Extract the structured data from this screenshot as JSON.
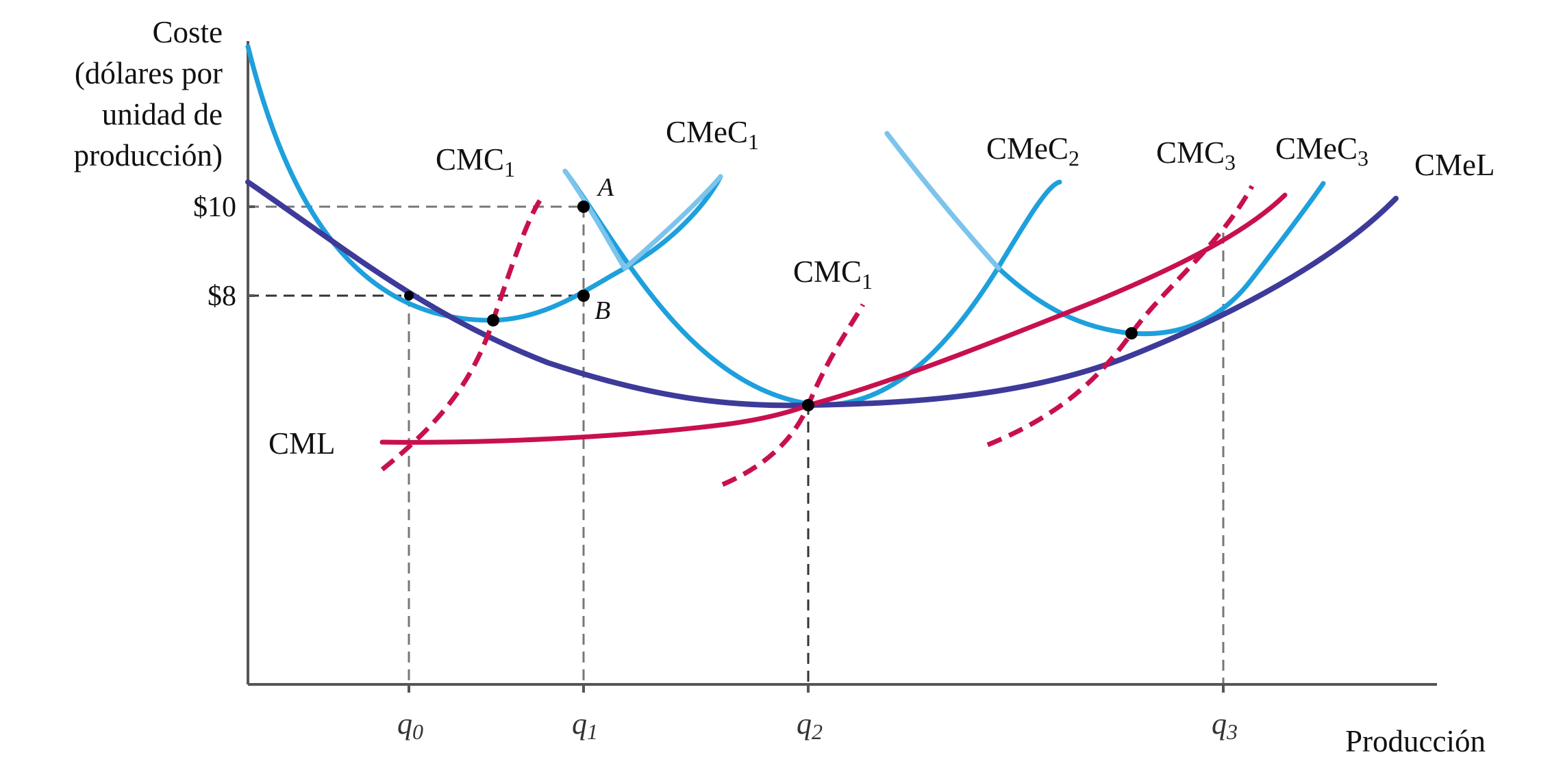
{
  "axes": {
    "y_title_lines": [
      "Coste",
      "(dólares por",
      "unidad de",
      "producción)"
    ],
    "x_title": "Producción",
    "y_ticks": [
      "$10",
      "$8"
    ],
    "x_ticks": [
      {
        "base": "q",
        "sub": "0"
      },
      {
        "base": "q",
        "sub": "1"
      },
      {
        "base": "q",
        "sub": "2"
      },
      {
        "base": "q",
        "sub": "3"
      }
    ]
  },
  "curve_labels": {
    "cmc1_left": {
      "base": "CMC",
      "sub": "1"
    },
    "cmec1": {
      "base": "CMeC",
      "sub": "1"
    },
    "cmec2": {
      "base": "CMeC",
      "sub": "2"
    },
    "cmc3": {
      "base": "CMC",
      "sub": "3"
    },
    "cmec3": {
      "base": "CMeC",
      "sub": "3"
    },
    "cmel": "CMeL",
    "cmc1_mid": {
      "base": "CMC",
      "sub": "1"
    },
    "cml": "CML"
  },
  "points": {
    "A": "A",
    "B": "B"
  },
  "colors": {
    "short_run_avg": "#1ea0dc",
    "short_run_avg_light": "#7cc4ec",
    "long_run_avg": "#3d3a9a",
    "marginal": "#c8104e",
    "guide": "#777777",
    "axis": "#555555"
  }
}
